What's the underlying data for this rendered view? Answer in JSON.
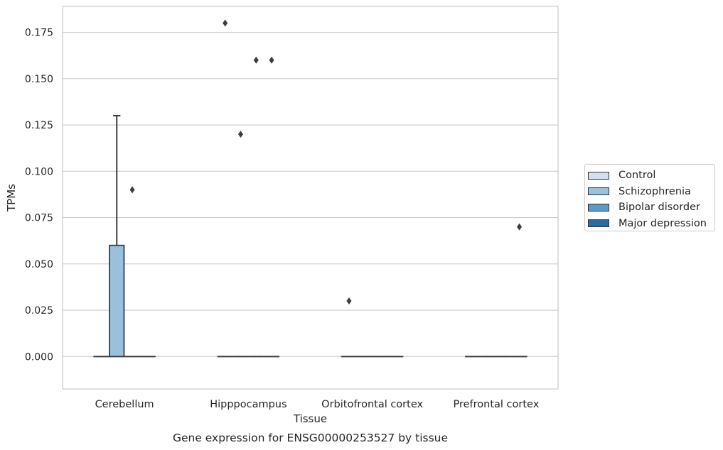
{
  "chart_data": {
    "type": "box",
    "title": "Gene expression for ENSG00000253527 by tissue",
    "xlabel": "Tissue",
    "ylabel": "TPMs",
    "ylim": [
      -0.0175,
      0.189
    ],
    "yticks": [
      "0.000",
      "0.025",
      "0.050",
      "0.075",
      "0.100",
      "0.125",
      "0.150",
      "0.175"
    ],
    "grid": true,
    "legend_position": "right",
    "categories": [
      "Cerebellum",
      "Hipppocampus",
      "Orbitofrontal cortex",
      "Prefrontal cortex"
    ],
    "series": [
      {
        "name": "Control",
        "color": "#d0e0ef",
        "boxes": [
          {
            "category": "Cerebellum",
            "whislo": 0,
            "q1": 0,
            "med": 0,
            "q3": 0,
            "whishi": 0,
            "fliers": []
          },
          {
            "category": "Hipppocampus",
            "whislo": 0,
            "q1": 0,
            "med": 0,
            "q3": 0,
            "whishi": 0,
            "fliers": [
              0.18
            ]
          },
          {
            "category": "Orbitofrontal cortex",
            "whislo": 0,
            "q1": 0,
            "med": 0,
            "q3": 0,
            "whishi": 0,
            "fliers": [
              0.03
            ]
          },
          {
            "category": "Prefrontal cortex",
            "whislo": 0,
            "q1": 0,
            "med": 0,
            "q3": 0,
            "whishi": 0,
            "fliers": []
          }
        ]
      },
      {
        "name": "Schizophrenia",
        "color": "#9ac1dc",
        "boxes": [
          {
            "category": "Cerebellum",
            "whislo": 0,
            "q1": 0,
            "med": 0,
            "q3": 0.06,
            "whishi": 0.13,
            "fliers": []
          },
          {
            "category": "Hipppocampus",
            "whislo": 0,
            "q1": 0,
            "med": 0,
            "q3": 0,
            "whishi": 0,
            "fliers": [
              0.12
            ]
          },
          {
            "category": "Orbitofrontal cortex",
            "whislo": 0,
            "q1": 0,
            "med": 0,
            "q3": 0,
            "whishi": 0,
            "fliers": []
          },
          {
            "category": "Prefrontal cortex",
            "whislo": 0,
            "q1": 0,
            "med": 0,
            "q3": 0,
            "whishi": 0,
            "fliers": []
          }
        ]
      },
      {
        "name": "Bipolar disorder",
        "color": "#5a9bc7",
        "boxes": [
          {
            "category": "Cerebellum",
            "whislo": 0,
            "q1": 0,
            "med": 0,
            "q3": 0,
            "whishi": 0,
            "fliers": [
              0.09
            ]
          },
          {
            "category": "Hipppocampus",
            "whislo": 0,
            "q1": 0,
            "med": 0,
            "q3": 0,
            "whishi": 0,
            "fliers": [
              0.16
            ]
          },
          {
            "category": "Orbitofrontal cortex",
            "whislo": 0,
            "q1": 0,
            "med": 0,
            "q3": 0,
            "whishi": 0,
            "fliers": []
          },
          {
            "category": "Prefrontal cortex",
            "whislo": 0,
            "q1": 0,
            "med": 0,
            "q3": 0,
            "whishi": 0,
            "fliers": []
          }
        ]
      },
      {
        "name": "Major depression",
        "color": "#2b6ca6",
        "boxes": [
          {
            "category": "Cerebellum",
            "whislo": 0,
            "q1": 0,
            "med": 0,
            "q3": 0,
            "whishi": 0,
            "fliers": []
          },
          {
            "category": "Hipppocampus",
            "whislo": 0,
            "q1": 0,
            "med": 0,
            "q3": 0,
            "whishi": 0,
            "fliers": [
              0.16
            ]
          },
          {
            "category": "Orbitofrontal cortex",
            "whislo": 0,
            "q1": 0,
            "med": 0,
            "q3": 0,
            "whishi": 0,
            "fliers": []
          },
          {
            "category": "Prefrontal cortex",
            "whislo": 0,
            "q1": 0,
            "med": 0,
            "q3": 0,
            "whishi": 0,
            "fliers": [
              0.07
            ]
          }
        ]
      }
    ]
  }
}
